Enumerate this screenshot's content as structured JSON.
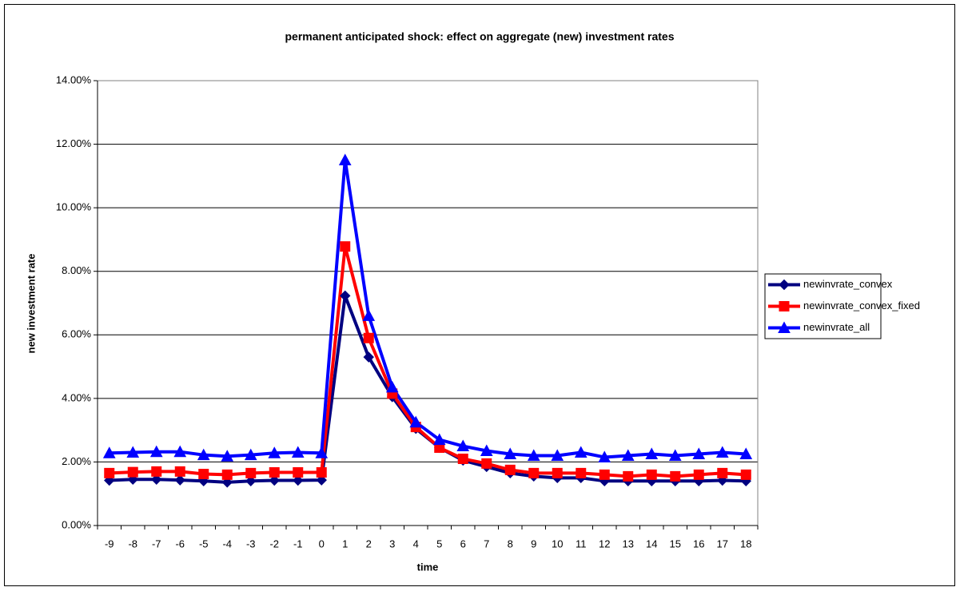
{
  "chart_data": {
    "type": "line",
    "title": "permanent anticipated shock: effect on aggregate (new) investment rates",
    "x_label": "time",
    "y_label": "new investment rate",
    "categories": [
      -9,
      -8,
      -7,
      -6,
      -5,
      -4,
      -3,
      -2,
      -1,
      0,
      1,
      2,
      3,
      4,
      5,
      6,
      7,
      8,
      9,
      10,
      11,
      12,
      13,
      14,
      15,
      16,
      17,
      18
    ],
    "series": [
      {
        "name": "newinvrate_convex",
        "color": "#000080",
        "marker": "diamond",
        "values": [
          1.42,
          1.45,
          1.45,
          1.43,
          1.4,
          1.36,
          1.4,
          1.42,
          1.42,
          1.43,
          7.23,
          5.3,
          4.05,
          3.05,
          2.45,
          2.05,
          1.85,
          1.65,
          1.55,
          1.5,
          1.5,
          1.4,
          1.4,
          1.4,
          1.4,
          1.4,
          1.42,
          1.4
        ]
      },
      {
        "name": "newinvrate_convex_fixed",
        "color": "#ff0000",
        "marker": "square",
        "values": [
          1.65,
          1.68,
          1.7,
          1.7,
          1.62,
          1.6,
          1.65,
          1.67,
          1.67,
          1.67,
          8.78,
          5.9,
          4.15,
          3.1,
          2.45,
          2.1,
          1.95,
          1.75,
          1.65,
          1.65,
          1.65,
          1.6,
          1.55,
          1.6,
          1.55,
          1.6,
          1.65,
          1.6
        ]
      },
      {
        "name": "newinvrate_all",
        "color": "#0000ff",
        "marker": "triangle",
        "values": [
          2.28,
          2.3,
          2.32,
          2.32,
          2.22,
          2.18,
          2.22,
          2.28,
          2.3,
          2.28,
          11.5,
          6.6,
          4.35,
          3.25,
          2.7,
          2.5,
          2.35,
          2.25,
          2.2,
          2.2,
          2.3,
          2.15,
          2.2,
          2.25,
          2.2,
          2.25,
          2.3,
          2.25
        ]
      }
    ],
    "ylim": [
      0,
      14
    ],
    "yticks": [
      {
        "value": 0,
        "label": "0.00%"
      },
      {
        "value": 2,
        "label": "2.00%"
      },
      {
        "value": 4,
        "label": "4.00%"
      },
      {
        "value": 6,
        "label": "6.00%"
      },
      {
        "value": 8,
        "label": "8.00%"
      },
      {
        "value": 10,
        "label": "10.00%"
      },
      {
        "value": 12,
        "label": "12.00%"
      },
      {
        "value": 14,
        "label": "14.00%"
      }
    ],
    "grid": true,
    "legend": "right"
  }
}
